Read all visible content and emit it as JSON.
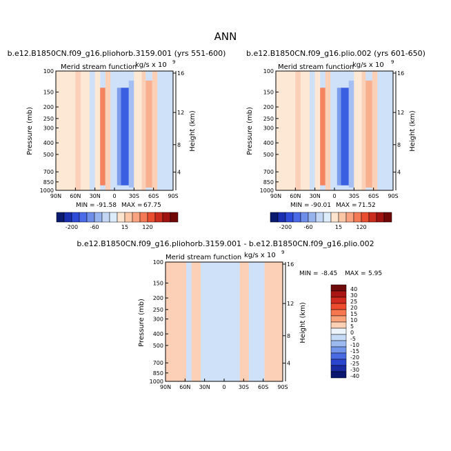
{
  "figure_title": "ANN",
  "chart_data": [
    {
      "id": "panel-a",
      "type": "heatmap",
      "title": "b.e12.B1850CN.f09_g16.pliohorb.3159.001 (yrs 551-600)",
      "subtitle_left": "Merid stream function",
      "subtitle_right": "kg/s x 10",
      "subtitle_exp": "9",
      "ylabel": "Pressure (mb)",
      "ylabel_right": "Height (km)",
      "xlabels": [
        "90N",
        "60N",
        "30N",
        "0",
        "30S",
        "60S",
        "90S"
      ],
      "ylabels": [
        "100",
        "150",
        "200",
        "250",
        "300",
        "400",
        "500",
        "700",
        "850",
        "1000"
      ],
      "yticks_right": [
        "16",
        "12",
        "8",
        "4"
      ],
      "ylim": [
        100,
        1000
      ],
      "stats": {
        "min_label": "MIN =",
        "min": "-91.58",
        "max_label": "MAX =",
        "max": "67.75"
      },
      "colorbar_labels": [
        "-200",
        "-60",
        "15",
        "120"
      ],
      "bands": [
        {
          "x": [
            90,
            60
          ],
          "level": 0
        },
        {
          "x": [
            60,
            52
          ],
          "level": 1
        },
        {
          "x": [
            52,
            38
          ],
          "level": 0
        },
        {
          "x": [
            38,
            30
          ],
          "level": -1
        },
        {
          "x": [
            30,
            22
          ],
          "level": 0
        },
        {
          "x": [
            22,
            14
          ],
          "level": 3
        },
        {
          "x": [
            14,
            6
          ],
          "level": 1
        },
        {
          "x": [
            6,
            -4
          ],
          "level": -1
        },
        {
          "x": [
            -4,
            -10
          ],
          "level": -3
        },
        {
          "x": [
            -10,
            -22
          ],
          "level": -5
        },
        {
          "x": [
            -22,
            -30
          ],
          "level": -2
        },
        {
          "x": [
            -30,
            -42
          ],
          "level": 0
        },
        {
          "x": [
            -42,
            -48
          ],
          "level": 1
        },
        {
          "x": [
            -48,
            -58
          ],
          "level": 2
        },
        {
          "x": [
            -58,
            -66
          ],
          "level": 1
        },
        {
          "x": [
            -66,
            -90
          ],
          "level": -1
        }
      ]
    },
    {
      "id": "panel-b",
      "type": "heatmap",
      "title": "b.e12.B1850CN.f09_g16.plio.002 (yrs 601-650)",
      "subtitle_left": "Merid stream function",
      "subtitle_right": "kg/s x 10",
      "subtitle_exp": "9",
      "ylabel": "Pressure (mb)",
      "ylabel_right": "Height (km)",
      "xlabels": [
        "90N",
        "60N",
        "30N",
        "0",
        "30S",
        "60S",
        "90S"
      ],
      "ylabels": [
        "100",
        "150",
        "200",
        "250",
        "300",
        "400",
        "500",
        "700",
        "850",
        "1000"
      ],
      "yticks_right": [
        "16",
        "12",
        "8",
        "4"
      ],
      "ylim": [
        100,
        1000
      ],
      "stats": {
        "min_label": "MIN =",
        "min": "-90.01",
        "max_label": "MAX =",
        "max": "71.52"
      },
      "colorbar_labels": [
        "-200",
        "-60",
        "15",
        "120"
      ],
      "bands": [
        {
          "x": [
            90,
            60
          ],
          "level": 0
        },
        {
          "x": [
            60,
            52
          ],
          "level": 1
        },
        {
          "x": [
            52,
            38
          ],
          "level": 0
        },
        {
          "x": [
            38,
            30
          ],
          "level": -1
        },
        {
          "x": [
            30,
            22
          ],
          "level": 0
        },
        {
          "x": [
            22,
            14
          ],
          "level": 3
        },
        {
          "x": [
            14,
            6
          ],
          "level": 1
        },
        {
          "x": [
            6,
            -4
          ],
          "level": -1
        },
        {
          "x": [
            -4,
            -10
          ],
          "level": -3
        },
        {
          "x": [
            -10,
            -22
          ],
          "level": -5
        },
        {
          "x": [
            -22,
            -30
          ],
          "level": -2
        },
        {
          "x": [
            -30,
            -42
          ],
          "level": 0
        },
        {
          "x": [
            -42,
            -48
          ],
          "level": 1
        },
        {
          "x": [
            -48,
            -58
          ],
          "level": 2
        },
        {
          "x": [
            -58,
            -66
          ],
          "level": 1
        },
        {
          "x": [
            -66,
            -90
          ],
          "level": -1
        }
      ]
    },
    {
      "id": "panel-diff",
      "type": "heatmap",
      "title": "b.e12.B1850CN.f09_g16.pliohorb.3159.001 - b.e12.B1850CN.f09_g16.plio.002",
      "subtitle_left": "Merid stream function",
      "subtitle_right": "kg/s x 10",
      "subtitle_exp": "9",
      "ylabel": "Pressure (mb)",
      "ylabel_right": "Height (km)",
      "xlabels": [
        "90N",
        "60N",
        "30N",
        "0",
        "30S",
        "60S",
        "90S"
      ],
      "ylabels": [
        "100",
        "150",
        "200",
        "250",
        "300",
        "400",
        "500",
        "700",
        "850",
        "1000"
      ],
      "yticks_right": [
        "16",
        "12",
        "8",
        "4"
      ],
      "ylim": [
        100,
        1000
      ],
      "stats": {
        "min_label": "MIN =",
        "min": "-8.45",
        "max_label": "MAX =",
        "max": "5.95"
      },
      "colorbar_labels": [
        "40",
        "30",
        "25",
        "20",
        "15",
        "10",
        "5",
        "0",
        "-5",
        "-10",
        "-15",
        "-20",
        "-25",
        "-30",
        "-40"
      ],
      "bands": [
        {
          "x": [
            90,
            58
          ],
          "level": 1
        },
        {
          "x": [
            58,
            50
          ],
          "level": -1
        },
        {
          "x": [
            50,
            36
          ],
          "level": 1
        },
        {
          "x": [
            36,
            -24
          ],
          "level": -1
        },
        {
          "x": [
            -24,
            -38
          ],
          "level": 1
        },
        {
          "x": [
            -38,
            -62
          ],
          "level": -1
        },
        {
          "x": [
            -62,
            -90
          ],
          "level": 1
        }
      ]
    }
  ],
  "colorbar_colors": {
    "top": [
      "#0a1a6e",
      "#1a2fb0",
      "#2d4bd8",
      "#4a6ae8",
      "#6f8ee9",
      "#97b3ee",
      "#c3d7f5",
      "#dcecfa",
      "#fde4cf",
      "#fcc7a6",
      "#f9a380",
      "#f47a55",
      "#e84e2f",
      "#c92b1c",
      "#9e1210",
      "#700808"
    ],
    "diff": [
      "#6e0a0a",
      "#a81512",
      "#d12a1e",
      "#ed4a2e",
      "#f6774d",
      "#faa27a",
      "#fcd0b4",
      "#eef4fb",
      "#c6dbf5",
      "#9cbaf0",
      "#7294ea",
      "#4a6ae3",
      "#2a46cf",
      "#1a2aa0",
      "#0a1670"
    ]
  },
  "fill_colors": {
    "-5": "#3a5fe0",
    "-4": "#5a7ee8",
    "-3": "#7e9cee",
    "-2": "#a6bff2",
    "-1": "#cfe1f8",
    "0": "#fde8d6",
    "1": "#fbd0b6",
    "2": "#f8b08f",
    "3": "#f4835e"
  }
}
